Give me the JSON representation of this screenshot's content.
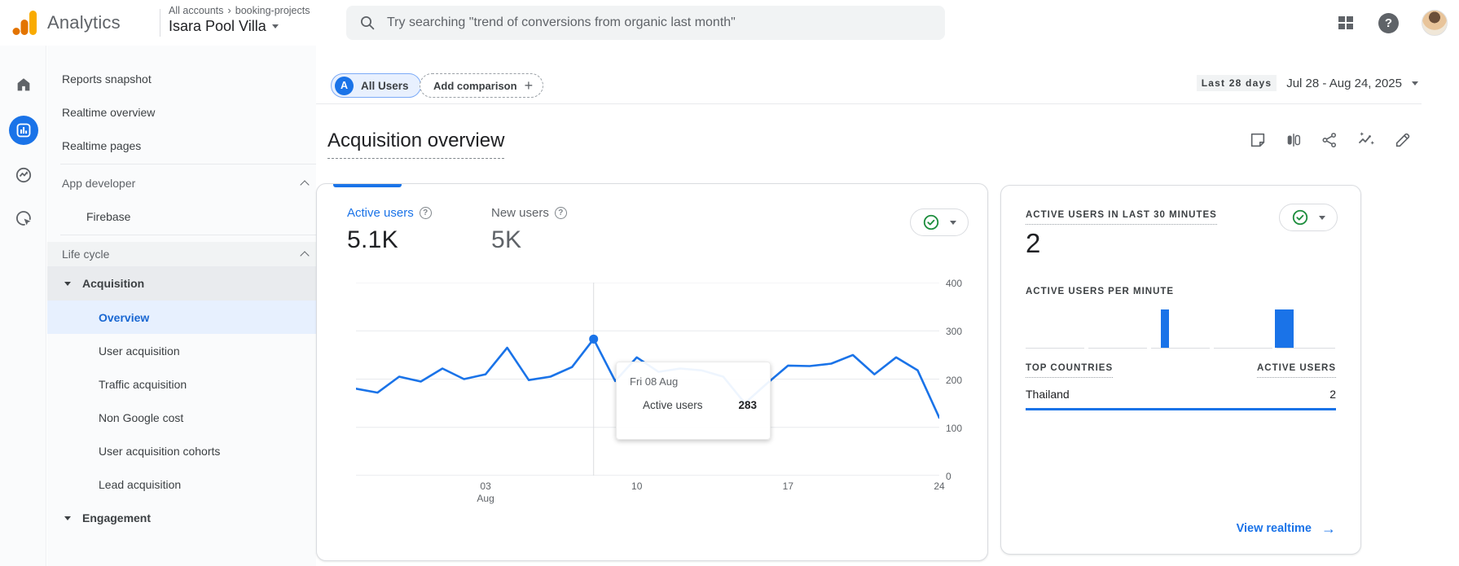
{
  "header": {
    "app_name": "Analytics",
    "breadcrumb_root": "All accounts",
    "breadcrumb_project": "booking-projects",
    "property_name": "Isara Pool Villa",
    "search_placeholder": "Try searching \"trend of conversions from organic last month\""
  },
  "sidebar": {
    "items": [
      {
        "label": "Reports snapshot"
      },
      {
        "label": "Realtime overview"
      },
      {
        "label": "Realtime pages"
      }
    ],
    "app_developer_label": "App developer",
    "firebase_label": "Firebase",
    "life_cycle_label": "Life cycle",
    "acquisition": {
      "label": "Acquisition",
      "items": [
        {
          "label": "Overview",
          "active": true
        },
        {
          "label": "User acquisition"
        },
        {
          "label": "Traffic acquisition"
        },
        {
          "label": "Non Google cost"
        },
        {
          "label": "User acquisition cohorts"
        },
        {
          "label": "Lead acquisition"
        }
      ]
    },
    "engagement_label": "Engagement"
  },
  "toolbar": {
    "segment_badge": "A",
    "segment_label": "All Users",
    "add_comparison_label": "Add comparison",
    "date_preset": "Last 28 days",
    "date_range": "Jul 28 - Aug 24, 2025"
  },
  "page": {
    "title": "Acquisition overview"
  },
  "main_card": {
    "metrics": [
      {
        "label": "Active users",
        "value": "5.1K"
      },
      {
        "label": "New users",
        "value": "5K"
      }
    ],
    "tooltip": {
      "date": "Fri 08 Aug",
      "metric": "Active users",
      "value": "283"
    }
  },
  "realtime_card": {
    "title": "ACTIVE USERS IN LAST 30 MINUTES",
    "value": "2",
    "per_minute_label": "ACTIVE USERS PER MINUTE",
    "countries_header": "TOP COUNTRIES",
    "users_header": "ACTIVE USERS",
    "rows": [
      {
        "country": "Thailand",
        "users": "2"
      }
    ],
    "view_realtime_label": "View realtime"
  },
  "colors": {
    "accent_blue": "#1a73e8",
    "green": "#1e8e3e",
    "grid": "#e8eaed",
    "axis_text": "#5f6368"
  },
  "chart_data": [
    {
      "type": "line",
      "title": "Active users by day (Jul 28 - Aug 24, 2025)",
      "x": [
        "Jul 28",
        "Jul 29",
        "Jul 30",
        "Jul 31",
        "Aug 01",
        "Aug 02",
        "Aug 03",
        "Aug 04",
        "Aug 05",
        "Aug 06",
        "Aug 07",
        "Aug 08",
        "Aug 09",
        "Aug 10",
        "Aug 11",
        "Aug 12",
        "Aug 13",
        "Aug 14",
        "Aug 15",
        "Aug 16",
        "Aug 17",
        "Aug 18",
        "Aug 19",
        "Aug 20",
        "Aug 21",
        "Aug 22",
        "Aug 23",
        "Aug 24"
      ],
      "series": [
        {
          "name": "Active users",
          "values": [
            180,
            172,
            205,
            195,
            222,
            200,
            210,
            265,
            198,
            205,
            225,
            283,
            196,
            245,
            215,
            222,
            218,
            205,
            150,
            190,
            228,
            227,
            232,
            250,
            210,
            245,
            218,
            120
          ]
        }
      ],
      "ylim": [
        0,
        400
      ],
      "yticks": [
        0,
        100,
        200,
        300,
        400
      ],
      "y_axis_position": "right",
      "grid": true,
      "x_ticks": [
        {
          "index": 6,
          "line1": "03",
          "line2": "Aug"
        },
        {
          "index": 13,
          "line1": "10",
          "line2": ""
        },
        {
          "index": 20,
          "line1": "17",
          "line2": ""
        },
        {
          "index": 27,
          "line1": "24",
          "line2": ""
        }
      ],
      "highlight": {
        "index": 11,
        "value": 283,
        "label": "Fri 08 Aug"
      },
      "line_color": "#1a73e8"
    },
    {
      "type": "bar",
      "title": "Active users per minute (last 30 minutes)",
      "values": [
        0,
        0,
        0,
        0,
        0,
        0,
        0,
        0,
        0,
        0,
        0,
        0,
        0,
        1,
        0,
        0,
        0,
        0,
        0,
        0,
        0,
        0,
        0,
        0,
        1,
        1,
        0,
        0,
        0,
        0
      ],
      "ylim": [
        0,
        1
      ],
      "bar_color": "#1a73e8"
    }
  ]
}
